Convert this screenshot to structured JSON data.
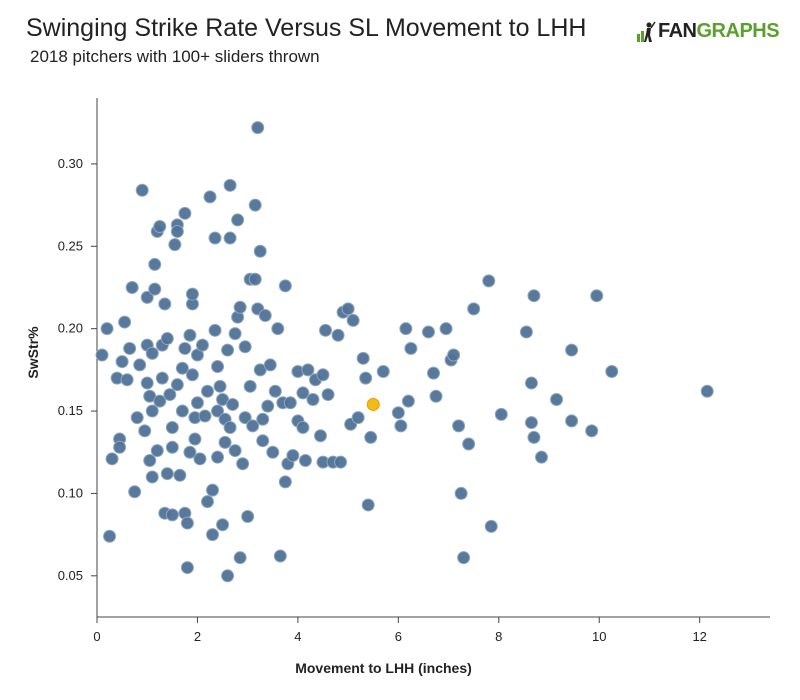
{
  "header": {
    "title": "Swinging Strike Rate Versus SL Movement to LHH",
    "subtitle": "2018 pitchers with 100+ sliders thrown",
    "brand_prefix": "FAN",
    "brand_suffix": "GRAPHS",
    "brand_color": "#5aa02c"
  },
  "chart_data": {
    "type": "scatter",
    "xlabel": "Movement to LHH (inches)",
    "ylabel": "SwStr%",
    "xlim": [
      0,
      13.4
    ],
    "ylim": [
      0.025,
      0.34
    ],
    "xticks": [
      0,
      2,
      4,
      6,
      8,
      10,
      12
    ],
    "yticks": [
      0.05,
      0.1,
      0.15,
      0.2,
      0.25,
      0.3
    ],
    "grid": false,
    "colors": {
      "point": "#4f7296",
      "point_stroke": "#8fa8c0",
      "highlight": "#f5b915"
    },
    "series": [
      {
        "points": [
          [
            0.1,
            0.184
          ],
          [
            0.2,
            0.2
          ],
          [
            0.3,
            0.121
          ],
          [
            0.4,
            0.17
          ],
          [
            0.45,
            0.133
          ],
          [
            0.45,
            0.128
          ],
          [
            0.5,
            0.18
          ],
          [
            0.55,
            0.204
          ],
          [
            0.25,
            0.074
          ],
          [
            0.6,
            0.169
          ],
          [
            0.65,
            0.188
          ],
          [
            0.7,
            0.225
          ],
          [
            0.75,
            0.101
          ],
          [
            0.8,
            0.146
          ],
          [
            0.85,
            0.178
          ],
          [
            0.9,
            0.284
          ],
          [
            0.95,
            0.138
          ],
          [
            1.0,
            0.19
          ],
          [
            1.0,
            0.167
          ],
          [
            1.0,
            0.219
          ],
          [
            1.05,
            0.159
          ],
          [
            1.05,
            0.12
          ],
          [
            1.1,
            0.185
          ],
          [
            1.1,
            0.11
          ],
          [
            1.1,
            0.15
          ],
          [
            1.15,
            0.224
          ],
          [
            1.15,
            0.239
          ],
          [
            1.2,
            0.259
          ],
          [
            1.2,
            0.126
          ],
          [
            1.25,
            0.262
          ],
          [
            1.25,
            0.156
          ],
          [
            1.3,
            0.19
          ],
          [
            1.3,
            0.17
          ],
          [
            1.35,
            0.088
          ],
          [
            1.35,
            0.215
          ],
          [
            1.4,
            0.194
          ],
          [
            1.4,
            0.112
          ],
          [
            1.45,
            0.16
          ],
          [
            1.5,
            0.14
          ],
          [
            1.5,
            0.128
          ],
          [
            1.5,
            0.087
          ],
          [
            1.55,
            0.251
          ],
          [
            1.6,
            0.263
          ],
          [
            1.6,
            0.259
          ],
          [
            1.6,
            0.166
          ],
          [
            1.65,
            0.111
          ],
          [
            1.7,
            0.176
          ],
          [
            1.7,
            0.15
          ],
          [
            1.75,
            0.27
          ],
          [
            1.75,
            0.088
          ],
          [
            1.75,
            0.188
          ],
          [
            1.8,
            0.055
          ],
          [
            1.8,
            0.082
          ],
          [
            1.85,
            0.196
          ],
          [
            1.85,
            0.125
          ],
          [
            1.9,
            0.215
          ],
          [
            1.9,
            0.221
          ],
          [
            1.9,
            0.172
          ],
          [
            1.95,
            0.146
          ],
          [
            1.95,
            0.133
          ],
          [
            2.0,
            0.184
          ],
          [
            2.0,
            0.155
          ],
          [
            2.05,
            0.121
          ],
          [
            2.1,
            0.19
          ],
          [
            2.15,
            0.147
          ],
          [
            2.2,
            0.162
          ],
          [
            2.2,
            0.095
          ],
          [
            2.25,
            0.28
          ],
          [
            2.3,
            0.102
          ],
          [
            2.3,
            0.075
          ],
          [
            2.35,
            0.255
          ],
          [
            2.35,
            0.199
          ],
          [
            2.4,
            0.177
          ],
          [
            2.4,
            0.15
          ],
          [
            2.4,
            0.122
          ],
          [
            2.45,
            0.165
          ],
          [
            2.5,
            0.157
          ],
          [
            2.5,
            0.081
          ],
          [
            2.55,
            0.145
          ],
          [
            2.55,
            0.131
          ],
          [
            2.6,
            0.05
          ],
          [
            2.6,
            0.187
          ],
          [
            2.65,
            0.287
          ],
          [
            2.65,
            0.255
          ],
          [
            2.65,
            0.14
          ],
          [
            2.7,
            0.154
          ],
          [
            2.75,
            0.197
          ],
          [
            2.75,
            0.126
          ],
          [
            2.8,
            0.266
          ],
          [
            2.8,
            0.207
          ],
          [
            2.85,
            0.213
          ],
          [
            2.85,
            0.061
          ],
          [
            2.9,
            0.118
          ],
          [
            2.95,
            0.189
          ],
          [
            2.95,
            0.146
          ],
          [
            3.0,
            0.086
          ],
          [
            3.05,
            0.165
          ],
          [
            3.05,
            0.23
          ],
          [
            3.1,
            0.141
          ],
          [
            3.15,
            0.275
          ],
          [
            3.15,
            0.23
          ],
          [
            3.2,
            0.322
          ],
          [
            3.2,
            0.212
          ],
          [
            3.25,
            0.247
          ],
          [
            3.25,
            0.175
          ],
          [
            3.3,
            0.145
          ],
          [
            3.3,
            0.132
          ],
          [
            3.35,
            0.208
          ],
          [
            3.4,
            0.153
          ],
          [
            3.45,
            0.178
          ],
          [
            3.5,
            0.125
          ],
          [
            3.55,
            0.162
          ],
          [
            3.6,
            0.2
          ],
          [
            3.65,
            0.062
          ],
          [
            3.7,
            0.155
          ],
          [
            3.75,
            0.226
          ],
          [
            3.75,
            0.107
          ],
          [
            3.8,
            0.118
          ],
          [
            3.85,
            0.155
          ],
          [
            3.9,
            0.123
          ],
          [
            4.0,
            0.174
          ],
          [
            4.0,
            0.144
          ],
          [
            4.1,
            0.161
          ],
          [
            4.1,
            0.14
          ],
          [
            4.15,
            0.12
          ],
          [
            4.2,
            0.175
          ],
          [
            4.3,
            0.157
          ],
          [
            4.35,
            0.169
          ],
          [
            4.45,
            0.135
          ],
          [
            4.5,
            0.172
          ],
          [
            4.5,
            0.119
          ],
          [
            4.55,
            0.199
          ],
          [
            4.6,
            0.16
          ],
          [
            4.7,
            0.119
          ],
          [
            4.8,
            0.196
          ],
          [
            4.85,
            0.119
          ],
          [
            4.9,
            0.21
          ],
          [
            5.0,
            0.212
          ],
          [
            5.05,
            0.142
          ],
          [
            5.1,
            0.205
          ],
          [
            5.2,
            0.146
          ],
          [
            5.3,
            0.182
          ],
          [
            5.35,
            0.17
          ],
          [
            5.4,
            0.093
          ],
          [
            5.45,
            0.134
          ],
          [
            5.7,
            0.174
          ],
          [
            6.0,
            0.149
          ],
          [
            6.05,
            0.141
          ],
          [
            6.15,
            0.2
          ],
          [
            6.2,
            0.156
          ],
          [
            6.25,
            0.188
          ],
          [
            6.6,
            0.198
          ],
          [
            6.7,
            0.173
          ],
          [
            6.75,
            0.159
          ],
          [
            6.95,
            0.2
          ],
          [
            7.05,
            0.181
          ],
          [
            7.1,
            0.184
          ],
          [
            7.2,
            0.141
          ],
          [
            7.25,
            0.1
          ],
          [
            7.3,
            0.061
          ],
          [
            7.4,
            0.13
          ],
          [
            7.5,
            0.212
          ],
          [
            7.8,
            0.229
          ],
          [
            7.85,
            0.08
          ],
          [
            8.05,
            0.148
          ],
          [
            8.55,
            0.198
          ],
          [
            8.65,
            0.167
          ],
          [
            8.65,
            0.143
          ],
          [
            8.7,
            0.134
          ],
          [
            8.7,
            0.22
          ],
          [
            8.85,
            0.122
          ],
          [
            9.15,
            0.157
          ],
          [
            9.45,
            0.187
          ],
          [
            9.45,
            0.144
          ],
          [
            9.85,
            0.138
          ],
          [
            9.95,
            0.22
          ],
          [
            10.25,
            0.174
          ],
          [
            12.15,
            0.162
          ]
        ]
      }
    ],
    "highlight": {
      "x": 5.5,
      "y": 0.154
    }
  }
}
